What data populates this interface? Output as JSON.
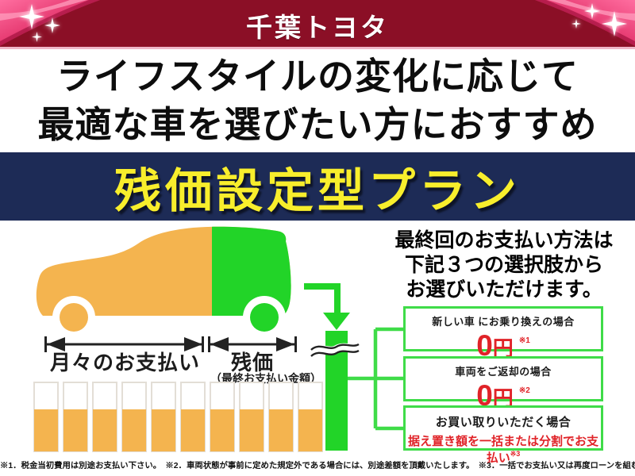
{
  "header": {
    "brand": "千葉トヨタ"
  },
  "headline": {
    "line1": "ライフスタイルの変化に応じて",
    "line2": "最適な車を選びたい方におすすめ"
  },
  "banner": {
    "title": "残価設定型プラン"
  },
  "diagram": {
    "monthly_label": "月々のお支払い",
    "residual_label": "残価",
    "residual_sublabel": "（最終お支払い金額）",
    "payment_bars": {
      "count": 10,
      "filled_ratio": 0.62
    }
  },
  "right_panel": {
    "intro_lines": [
      "最終回のお支払い方法は",
      "下記３つの選択肢から",
      "お選びいただけます。"
    ],
    "options": [
      {
        "label": "新しい車 にお乗り換えの場合",
        "amount": "0",
        "unit": "円",
        "note": "※1"
      },
      {
        "label": "車両をご返却の場合",
        "amount": "0",
        "unit": "円",
        "note": "※2"
      },
      {
        "label": "お買い取りいただく場合",
        "detail": "据え置き額を一括または分割でお支払い",
        "note": "※3"
      }
    ]
  },
  "footnotes": "※1．税金当初費用は別途お支払い下さい。　※2．車両状態が事前に定めた規定外である場合には、別途差額を頂戴いたします。　※3．一括でお支払い又は再度ローンを組むこともできます。",
  "colors": {
    "header_maroon": "#8b0f26",
    "ribbon_pink": "#e23169",
    "banner_navy": "#1d2b56",
    "banner_yellow": "#f8ee2c",
    "car_orange": "#f4b44f",
    "car_green": "#22d428",
    "accent_green": "#3fdc48",
    "price_red": "#e02328",
    "text_black": "#111111"
  }
}
